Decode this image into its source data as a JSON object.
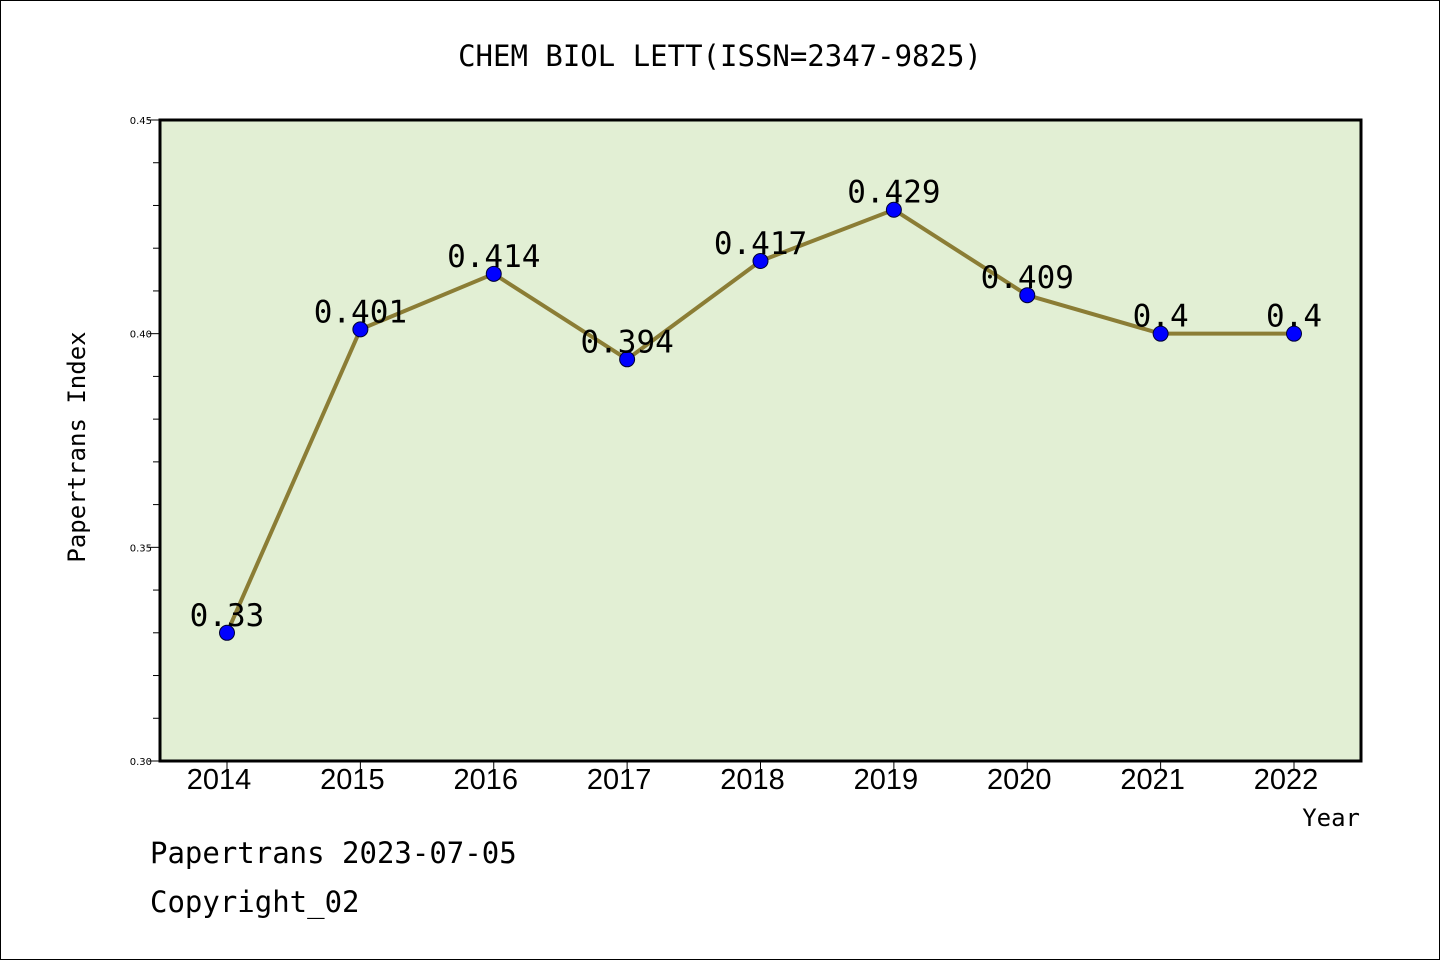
{
  "footer": {
    "line1": "Papertrans 2023-07-05",
    "line2": "Copyright_02"
  },
  "colors": {
    "plot_background": "#e2efd4",
    "line": "#8b7d35",
    "marker": "#0000ff",
    "axis": "#000000"
  },
  "chart_data": {
    "type": "line",
    "title": "CHEM BIOL LETT(ISSN=2347-9825)",
    "xlabel": "Year",
    "ylabel": "Papertrans Index",
    "categories": [
      "2014",
      "2015",
      "2016",
      "2017",
      "2018",
      "2019",
      "2020",
      "2021",
      "2022"
    ],
    "values": [
      0.33,
      0.401,
      0.414,
      0.394,
      0.417,
      0.429,
      0.409,
      0.4,
      0.4
    ],
    "data_labels": [
      "0.33",
      "0.401",
      "0.414",
      "0.394",
      "0.417",
      "0.429",
      "0.409",
      "0.4",
      "0.4"
    ],
    "ylim": [
      0.3,
      0.45
    ],
    "yticks": [
      "0.30",
      "0.35",
      "0.40",
      "0.45"
    ],
    "grid": false,
    "legend": "none"
  }
}
